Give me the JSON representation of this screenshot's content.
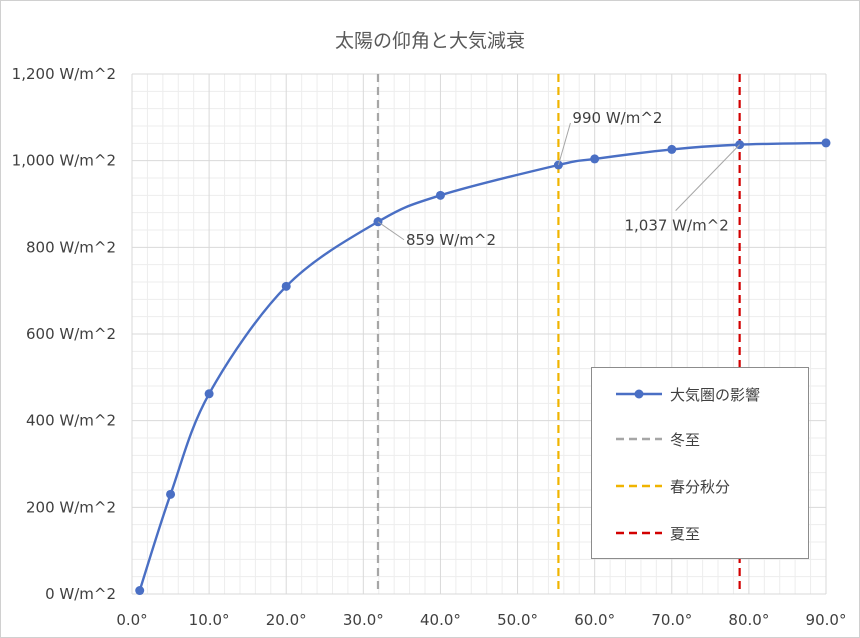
{
  "chart_data": {
    "type": "line",
    "title": "太陽の仰角と大気減衰",
    "xlabel": "",
    "ylabel": "",
    "xlim": [
      0,
      90
    ],
    "ylim": [
      0,
      1200
    ],
    "x_ticks": [
      0,
      10,
      20,
      30,
      40,
      50,
      60,
      70,
      80,
      90
    ],
    "x_tick_labels": [
      "0.0°",
      "10.0°",
      "20.0°",
      "30.0°",
      "40.0°",
      "50.0°",
      "60.0°",
      "70.0°",
      "80.0°",
      "90.0°"
    ],
    "y_ticks": [
      0,
      200,
      400,
      600,
      800,
      1000,
      1200
    ],
    "y_tick_labels": [
      "0 W/m^2",
      "200 W/m^2",
      "400 W/m^2",
      "600 W/m^2",
      "800 W/m^2",
      "1,000 W/m^2",
      "1,200 W/m^2"
    ],
    "grid": true,
    "series": [
      {
        "name": "大気圏の影響",
        "color": "#4a6fc4",
        "x": [
          1,
          5,
          10,
          20,
          31.9,
          40,
          55.3,
          60,
          70,
          78.8,
          90
        ],
        "y": [
          8,
          230,
          462,
          710,
          859,
          920,
          990,
          1004,
          1026,
          1037,
          1041
        ]
      }
    ],
    "reference_lines": [
      {
        "name": "冬至",
        "x": 31.9,
        "color": "#a6a6a6"
      },
      {
        "name": "春分秋分",
        "x": 55.3,
        "color": "#f0b400"
      },
      {
        "name": "夏至",
        "x": 78.8,
        "color": "#d20000"
      }
    ],
    "annotations": [
      {
        "text": "859 W/m^2",
        "x": 31.9,
        "y": 859
      },
      {
        "text": "990 W/m^2",
        "x": 55.3,
        "y": 990
      },
      {
        "text": "1,037 W/m^2",
        "x": 78.8,
        "y": 1037
      }
    ],
    "legend": {
      "placement": "bottom-right",
      "items": [
        "大気圏の影響",
        "冬至",
        "春分秋分",
        "夏至"
      ]
    }
  }
}
